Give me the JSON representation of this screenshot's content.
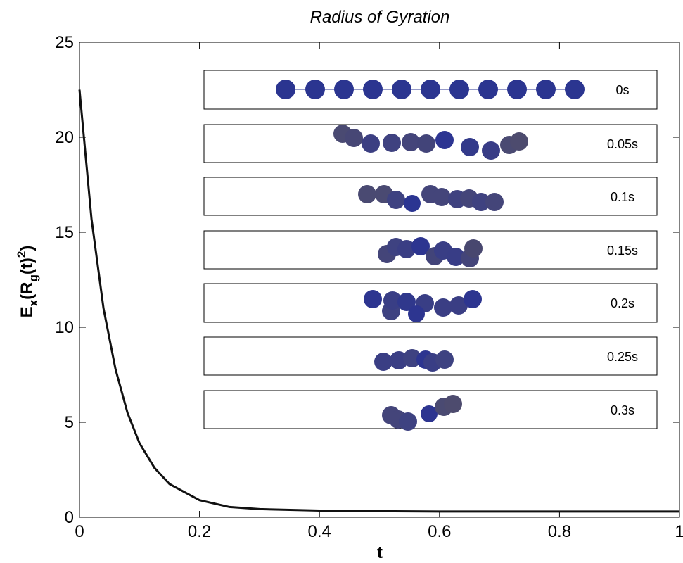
{
  "chart_data": {
    "type": "line",
    "title": "Radius of Gyration",
    "xlabel": "t",
    "ylabel": [
      "E",
      "x",
      "(R",
      "g",
      "(t)",
      "2",
      ")"
    ],
    "x": [
      0,
      0.02,
      0.04,
      0.06,
      0.08,
      0.1,
      0.125,
      0.15,
      0.2,
      0.25,
      0.3,
      0.4,
      0.5,
      0.6,
      0.7,
      0.8,
      0.9,
      1.0
    ],
    "series": [
      {
        "color": "#111111",
        "values": [
          22.5,
          15.7,
          11.0,
          7.8,
          5.5,
          3.9,
          2.6,
          1.75,
          0.9,
          0.54,
          0.43,
          0.35,
          0.32,
          0.3,
          0.3,
          0.3,
          0.3,
          0.3
        ]
      }
    ],
    "xlim": [
      0,
      1
    ],
    "ylim": [
      0,
      25
    ],
    "xticks": [
      0,
      0.2,
      0.4,
      0.6,
      0.8,
      1
    ],
    "yticks": [
      0,
      5,
      10,
      15,
      20,
      25
    ],
    "insets": [
      "0s",
      "0.05s",
      "0.1s",
      "0.15s",
      "0.2s",
      "0.25s",
      "0.3s"
    ]
  }
}
